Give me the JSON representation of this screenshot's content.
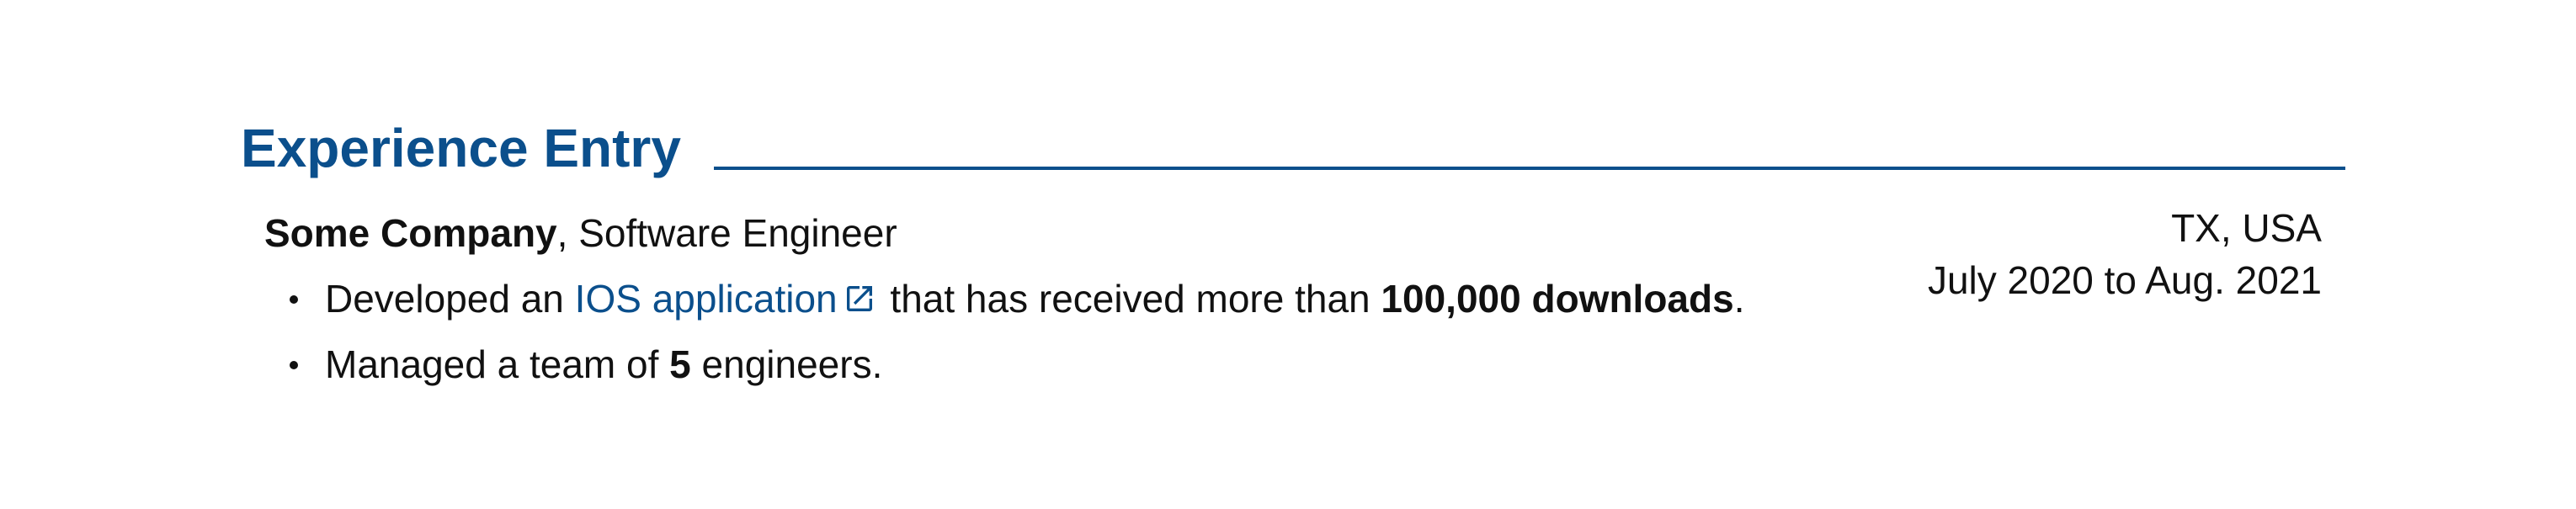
{
  "section": {
    "title": "Experience Entry"
  },
  "entry": {
    "company": "Some Company",
    "separator": ", ",
    "role": "Software Engineer",
    "location": "TX, USA",
    "dates": "July 2020 to Aug. 2021",
    "bullets": [
      {
        "prefix": "Developed an ",
        "link_text": "IOS application",
        "link_icon": "external-link-icon",
        "middle": " that has received more than ",
        "bold": "100,000 downloads",
        "suffix": "."
      },
      {
        "prefix": "Managed a team of ",
        "bold": "5",
        "suffix": " engineers."
      }
    ]
  },
  "colors": {
    "accent": "#0b4f8c",
    "text": "#111111",
    "background": "#ffffff"
  }
}
